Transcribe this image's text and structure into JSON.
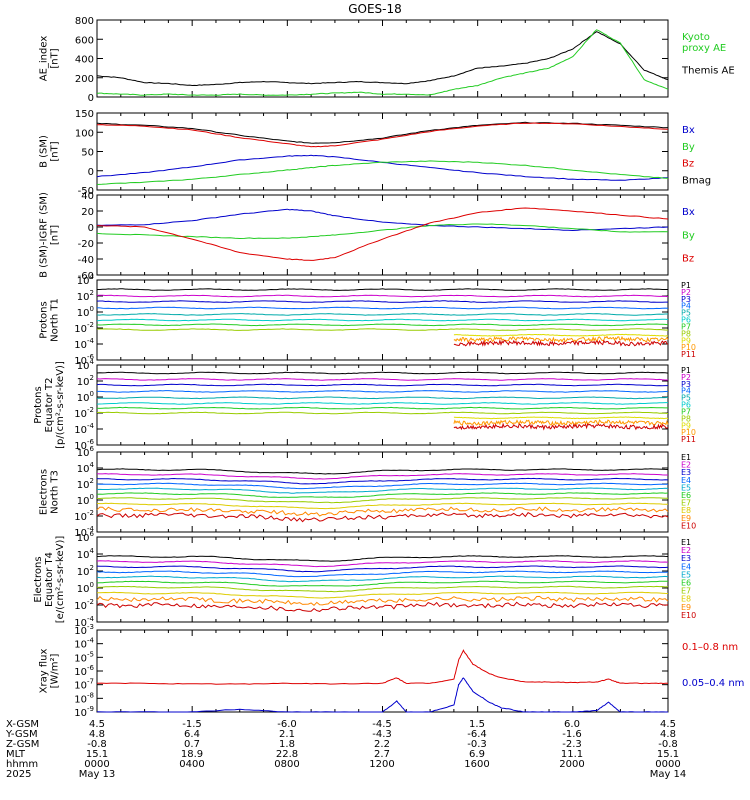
{
  "title": "GOES-18",
  "colors": {
    "black": "#000000",
    "red": "#dd0000",
    "green": "#22cc22",
    "blue": "#0000cc",
    "axis": "#000000"
  },
  "chart_data": [
    {
      "type": "line",
      "ylabel": "AE_index\n[nT]",
      "yscale": "linear",
      "ylim": [
        0,
        800
      ],
      "yticks": [
        "800",
        "600",
        "400",
        "200",
        "0"
      ],
      "legend": [
        {
          "label": "Kyoto\nproxy AE",
          "color": "#22cc22"
        },
        {
          "label": "Themis AE",
          "color": "#000000"
        }
      ],
      "series": [
        {
          "name": "Themis AE",
          "color": "#000000",
          "x": [
            0,
            1,
            2,
            3,
            4,
            5,
            6,
            7,
            8,
            9,
            10,
            11,
            12,
            13,
            14,
            15,
            16,
            17,
            18,
            19,
            20,
            21,
            22,
            23,
            24
          ],
          "y": [
            220,
            200,
            150,
            140,
            120,
            130,
            150,
            160,
            150,
            140,
            150,
            160,
            150,
            140,
            170,
            220,
            300,
            320,
            350,
            400,
            500,
            680,
            550,
            280,
            180
          ]
        },
        {
          "name": "Kyoto proxy AE",
          "color": "#22cc22",
          "x": [
            0,
            1,
            2,
            3,
            4,
            5,
            6,
            7,
            8,
            9,
            10,
            11,
            12,
            13,
            14,
            15,
            16,
            17,
            18,
            19,
            20,
            21,
            22,
            23,
            24
          ],
          "y": [
            40,
            30,
            20,
            30,
            20,
            20,
            30,
            20,
            20,
            30,
            40,
            50,
            30,
            30,
            20,
            80,
            120,
            200,
            250,
            300,
            420,
            700,
            560,
            180,
            80
          ]
        }
      ]
    },
    {
      "type": "line",
      "ylabel": "B (SM)\n[nT]",
      "yscale": "linear",
      "ylim": [
        -50,
        150
      ],
      "yticks": [
        "150",
        "100",
        "50",
        "0",
        "-50"
      ],
      "legend": [
        {
          "label": "Bx",
          "color": "#0000cc"
        },
        {
          "label": "By",
          "color": "#22cc22"
        },
        {
          "label": "Bz",
          "color": "#dd0000"
        },
        {
          "label": "Bmag",
          "color": "#000000"
        }
      ],
      "series": [
        {
          "name": "Bmag",
          "color": "#000000",
          "x": [
            0,
            2,
            4,
            6,
            8,
            9,
            10,
            12,
            14,
            16,
            18,
            20,
            22,
            24
          ],
          "y": [
            123,
            118,
            110,
            92,
            77,
            72,
            73,
            85,
            105,
            118,
            125,
            123,
            118,
            112
          ]
        },
        {
          "name": "Bz",
          "color": "#dd0000",
          "x": [
            0,
            2,
            4,
            6,
            8,
            9,
            10,
            12,
            14,
            16,
            18,
            20,
            22,
            24
          ],
          "y": [
            120,
            116,
            106,
            86,
            70,
            62,
            65,
            82,
            102,
            116,
            124,
            122,
            115,
            108
          ]
        },
        {
          "name": "Bx",
          "color": "#0000cc",
          "x": [
            0,
            2,
            4,
            6,
            8,
            9,
            10,
            12,
            14,
            16,
            18,
            20,
            22,
            24
          ],
          "y": [
            -15,
            -5,
            10,
            28,
            38,
            40,
            36,
            22,
            8,
            -5,
            -15,
            -22,
            -25,
            -18
          ]
        },
        {
          "name": "By",
          "color": "#22cc22",
          "x": [
            0,
            2,
            4,
            6,
            8,
            9,
            10,
            12,
            14,
            16,
            18,
            20,
            22,
            24
          ],
          "y": [
            -35,
            -30,
            -22,
            -10,
            2,
            8,
            14,
            22,
            25,
            22,
            14,
            2,
            -10,
            -20
          ]
        }
      ]
    },
    {
      "type": "line",
      "ylabel": "B (SM)-IGRF (SM)\n[nT]",
      "yscale": "linear",
      "ylim": [
        -60,
        40
      ],
      "yticks": [
        "40",
        "20",
        "0",
        "-20",
        "-40",
        "-60"
      ],
      "legend": [
        {
          "label": "Bx",
          "color": "#0000cc"
        },
        {
          "label": "By",
          "color": "#22cc22"
        },
        {
          "label": "Bz",
          "color": "#dd0000"
        }
      ],
      "series": [
        {
          "name": "Bx",
          "color": "#0000cc",
          "x": [
            0,
            2,
            4,
            6,
            8,
            9,
            10,
            12,
            14,
            16,
            18,
            20,
            22,
            24
          ],
          "y": [
            2,
            3,
            8,
            16,
            22,
            20,
            14,
            6,
            2,
            0,
            -2,
            -4,
            -2,
            0
          ]
        },
        {
          "name": "By",
          "color": "#22cc22",
          "x": [
            0,
            2,
            4,
            6,
            8,
            9,
            10,
            12,
            14,
            16,
            18,
            20,
            22,
            24
          ],
          "y": [
            -8,
            -10,
            -12,
            -14,
            -14,
            -12,
            -10,
            -4,
            2,
            4,
            2,
            -2,
            -6,
            -6
          ]
        },
        {
          "name": "Bz",
          "color": "#dd0000",
          "x": [
            0,
            2,
            4,
            6,
            8,
            9,
            10,
            12,
            14,
            16,
            18,
            20,
            22,
            24
          ],
          "y": [
            2,
            0,
            -15,
            -32,
            -40,
            -42,
            -38,
            -15,
            5,
            18,
            24,
            20,
            15,
            10
          ]
        }
      ]
    },
    {
      "type": "line",
      "ylabel": "Protons\nNorth T1",
      "yscale": "log",
      "ylim": [
        -6,
        4
      ],
      "yticks": [
        "10^4",
        "10^2",
        "10^0",
        "10^-2",
        "10^-4",
        "10^-6"
      ],
      "channels": [
        "P1",
        "P2",
        "P3",
        "P4",
        "P5",
        "P6",
        "P7",
        "P8",
        "P9",
        "P10",
        "P11"
      ],
      "levels": [
        2.8,
        2.0,
        1.3,
        0.5,
        -0.3,
        -1.0,
        -1.6,
        -2.2,
        -2.9,
        -3.4,
        -3.9
      ]
    },
    {
      "type": "line",
      "ylabel": "Protons\nEquator T2\n[p/(cm²-s-sr-keV)]",
      "yscale": "log",
      "ylim": [
        -6,
        4
      ],
      "yticks": [
        "10^4",
        "10^2",
        "10^0",
        "10^-2",
        "10^-4",
        "10^-6"
      ],
      "channels": [
        "P1",
        "P2",
        "P3",
        "P4",
        "P5",
        "P6",
        "P7",
        "P8",
        "P9",
        "P10",
        "P11"
      ],
      "levels": [
        3.0,
        2.2,
        1.5,
        0.7,
        -0.1,
        -0.8,
        -1.4,
        -2.0,
        -2.6,
        -3.2,
        -3.7
      ]
    },
    {
      "type": "line",
      "ylabel": "Electrons\nNorth T3",
      "yscale": "log",
      "ylim": [
        -4,
        6
      ],
      "yticks": [
        "10^6",
        "10^4",
        "10^2",
        "10^0",
        "10^-2",
        "10^-4"
      ],
      "channels": [
        "E1",
        "E2",
        "E3",
        "E4",
        "E5",
        "E6",
        "E7",
        "E8",
        "E9",
        "E10"
      ],
      "levels": [
        3.8,
        3.2,
        2.6,
        2.0,
        1.4,
        0.8,
        0.2,
        -0.5,
        -1.2,
        -1.9
      ]
    },
    {
      "type": "line",
      "ylabel": "Electrons\nEquator T4\n[e/(cm²-s-sr-keV)]",
      "yscale": "log",
      "ylim": [
        -4,
        6
      ],
      "yticks": [
        "10^6",
        "10^4",
        "10^2",
        "10^0",
        "10^-2",
        "10^-4"
      ],
      "channels": [
        "E1",
        "E2",
        "E3",
        "E4",
        "E5",
        "E6",
        "E7",
        "E8",
        "E9",
        "E10"
      ],
      "levels": [
        3.7,
        3.1,
        2.5,
        1.9,
        1.3,
        0.7,
        0.1,
        -0.6,
        -1.3,
        -2.0
      ]
    },
    {
      "type": "line",
      "ylabel": "Xray flux\n[W/m²]",
      "yscale": "log",
      "ylim": [
        -9,
        -3
      ],
      "yticks": [
        "10^-3",
        "10^-4",
        "10^-5",
        "10^-6",
        "10^-7",
        "10^-8",
        "10^-9"
      ],
      "legend": [
        {
          "label": "0.1–0.8 nm",
          "color": "#dd0000"
        },
        {
          "label": "0.05–0.4 nm",
          "color": "#0000cc"
        }
      ],
      "series": [
        {
          "name": "0.1–0.8 nm",
          "color": "#dd0000",
          "x": [
            0,
            2,
            4,
            6,
            8,
            10,
            12,
            12.6,
            13,
            14,
            15,
            15.2,
            15.4,
            15.8,
            16.5,
            17,
            18,
            19,
            20,
            21,
            21.5,
            22,
            23,
            24
          ],
          "y": [
            -6.9,
            -6.9,
            -6.95,
            -6.95,
            -6.9,
            -6.95,
            -6.9,
            -6.5,
            -6.9,
            -6.9,
            -6.6,
            -5.2,
            -4.5,
            -5.5,
            -6.2,
            -6.5,
            -6.8,
            -6.8,
            -6.85,
            -6.8,
            -6.6,
            -6.9,
            -6.9,
            -6.9
          ]
        },
        {
          "name": "0.05–0.4 nm",
          "color": "#0000cc",
          "x": [
            0,
            2,
            4,
            6,
            8,
            10,
            12,
            12.6,
            13,
            14,
            15,
            15.2,
            15.4,
            15.8,
            16.5,
            17,
            18,
            19,
            20,
            21,
            21.5,
            22,
            23,
            24
          ],
          "y": [
            -9,
            -9,
            -9,
            -8.8,
            -9,
            -9,
            -9,
            -8.2,
            -9,
            -9,
            -8.5,
            -7.0,
            -6.5,
            -7.5,
            -8.3,
            -8.7,
            -9,
            -9,
            -9,
            -8.9,
            -8.3,
            -9,
            -9,
            -9
          ]
        }
      ]
    }
  ],
  "xaxis": {
    "rows": [
      {
        "label": "X-GSM",
        "values": [
          "4.5",
          "-1.5",
          "-6.0",
          "-4.5",
          "1.5",
          "6.0",
          "4.5"
        ]
      },
      {
        "label": "Y-GSM",
        "values": [
          "4.8",
          "6.4",
          "2.1",
          "-4.3",
          "-6.4",
          "-1.6",
          "4.8"
        ]
      },
      {
        "label": "Z-GSM",
        "values": [
          "-0.8",
          "0.7",
          "1.8",
          "2.2",
          "-0.3",
          "-2.3",
          "-0.8"
        ]
      },
      {
        "label": "MLT",
        "values": [
          "15.1",
          "18.9",
          "22.8",
          "2.7",
          "6.9",
          "11.1",
          "15.1"
        ]
      },
      {
        "label": "hhmm",
        "values": [
          "0000",
          "0400",
          "0800",
          "1200",
          "1600",
          "2000",
          "0000"
        ]
      }
    ],
    "year": "2025",
    "date_start": "May 13",
    "date_end": "May 14"
  }
}
